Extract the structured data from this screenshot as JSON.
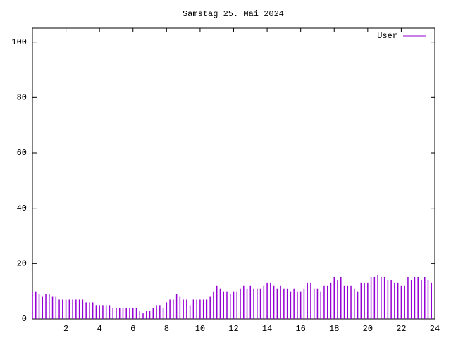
{
  "chart_data": {
    "type": "impulse",
    "title": "Samstag 25. Mai 2024",
    "x": [
      0,
      0.2,
      0.4,
      0.6,
      0.8,
      1,
      1.2,
      1.4,
      1.6,
      1.8,
      2,
      2.2,
      2.4,
      2.6,
      2.8,
      3,
      3.2,
      3.4,
      3.6,
      3.8,
      4,
      4.2,
      4.4,
      4.6,
      4.8,
      5,
      5.2,
      5.4,
      5.6,
      5.8,
      6,
      6.2,
      6.4,
      6.6,
      6.8,
      7,
      7.2,
      7.4,
      7.6,
      7.8,
      8,
      8.2,
      8.4,
      8.6,
      8.8,
      9,
      9.2,
      9.4,
      9.6,
      9.8,
      10,
      10.2,
      10.4,
      10.6,
      10.8,
      11,
      11.2,
      11.4,
      11.6,
      11.8,
      12,
      12.2,
      12.4,
      12.6,
      12.8,
      13,
      13.2,
      13.4,
      13.6,
      13.8,
      14,
      14.2,
      14.4,
      14.6,
      14.8,
      15,
      15.2,
      15.4,
      15.6,
      15.8,
      16,
      16.2,
      16.4,
      16.6,
      16.8,
      17,
      17.2,
      17.4,
      17.6,
      17.8,
      18,
      18.2,
      18.4,
      18.6,
      18.8,
      19,
      19.2,
      19.4,
      19.6,
      19.8,
      20,
      20.2,
      20.4,
      20.6,
      20.8,
      21,
      21.2,
      21.4,
      21.6,
      21.8,
      22,
      22.2,
      22.4,
      22.6,
      22.8,
      23,
      23.2,
      23.4,
      23.6,
      23.8
    ],
    "series": [
      {
        "name": "User",
        "color": "#9400d3",
        "values": [
          10,
          10,
          9,
          8,
          9,
          9,
          8,
          8,
          7,
          7,
          7,
          7,
          7,
          7,
          7,
          7,
          6,
          6,
          6,
          5,
          5,
          5,
          5,
          5,
          4,
          4,
          4,
          4,
          4,
          4,
          4,
          4,
          3,
          2,
          3,
          3,
          4,
          5,
          5,
          4,
          6,
          7,
          7,
          9,
          8,
          7,
          7,
          5,
          7,
          7,
          7,
          7,
          7,
          8,
          10,
          12,
          11,
          10,
          10,
          9,
          10,
          10,
          11,
          12,
          11,
          12,
          11,
          11,
          11,
          12,
          13,
          13,
          12,
          11,
          12,
          11,
          11,
          10,
          11,
          10,
          10,
          11,
          13,
          13,
          11,
          11,
          10,
          12,
          12,
          13,
          15,
          14,
          15,
          12,
          12,
          12,
          11,
          10,
          13,
          13,
          13,
          15,
          15,
          16,
          15,
          15,
          14,
          14,
          13,
          13,
          12,
          12,
          15,
          14,
          15,
          15,
          14,
          15,
          14,
          13
        ]
      }
    ],
    "xlim": [
      0,
      24
    ],
    "ylim": [
      0,
      105
    ],
    "xticks": [
      2,
      4,
      6,
      8,
      10,
      12,
      14,
      16,
      18,
      20,
      22,
      24
    ],
    "yticks": [
      0,
      20,
      40,
      60,
      80,
      100
    ],
    "legend": "top-right"
  }
}
